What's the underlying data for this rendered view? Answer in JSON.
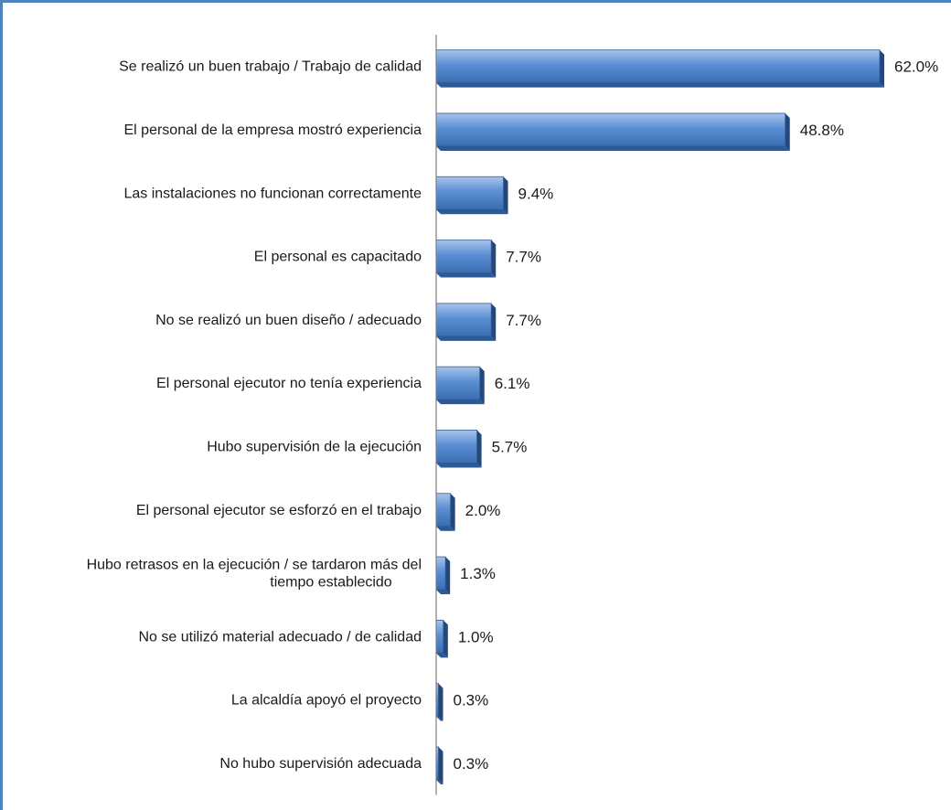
{
  "chart_data": {
    "type": "bar",
    "orientation": "horizontal",
    "title": "",
    "xlabel": "",
    "ylabel": "",
    "xlim": [
      0,
      62.0
    ],
    "grid": false,
    "legend": "none",
    "bar_color": "#4f81bd",
    "categories": [
      [
        "Se realizó un buen trabajo / Trabajo de calidad"
      ],
      [
        "El personal de la empresa mostró experiencia"
      ],
      [
        "Las instalaciones no funcionan correctamente"
      ],
      [
        "El personal es capacitado"
      ],
      [
        "No se realizó un buen diseño / adecuado"
      ],
      [
        "El personal ejecutor no tenía experiencia"
      ],
      [
        "Hubo supervisión de la ejecución"
      ],
      [
        "El personal ejecutor se esforzó en el trabajo"
      ],
      [
        "Hubo retrasos en la ejecución / se tardaron más del",
        "tiempo establecido"
      ],
      [
        "No se utilizó material adecuado / de calidad"
      ],
      [
        "La alcaldía apoyó el proyecto"
      ],
      [
        "No hubo supervisión adecuada"
      ]
    ],
    "values": [
      62.0,
      48.8,
      9.4,
      7.7,
      7.7,
      6.1,
      5.7,
      2.0,
      1.3,
      1.0,
      0.3,
      0.3
    ],
    "value_labels": [
      "62.0%",
      "48.8%",
      "9.4%",
      "7.7%",
      "7.7%",
      "6.1%",
      "5.7%",
      "2.0%",
      "1.3%",
      "1.0%",
      "0.3%",
      "0.3%"
    ]
  }
}
